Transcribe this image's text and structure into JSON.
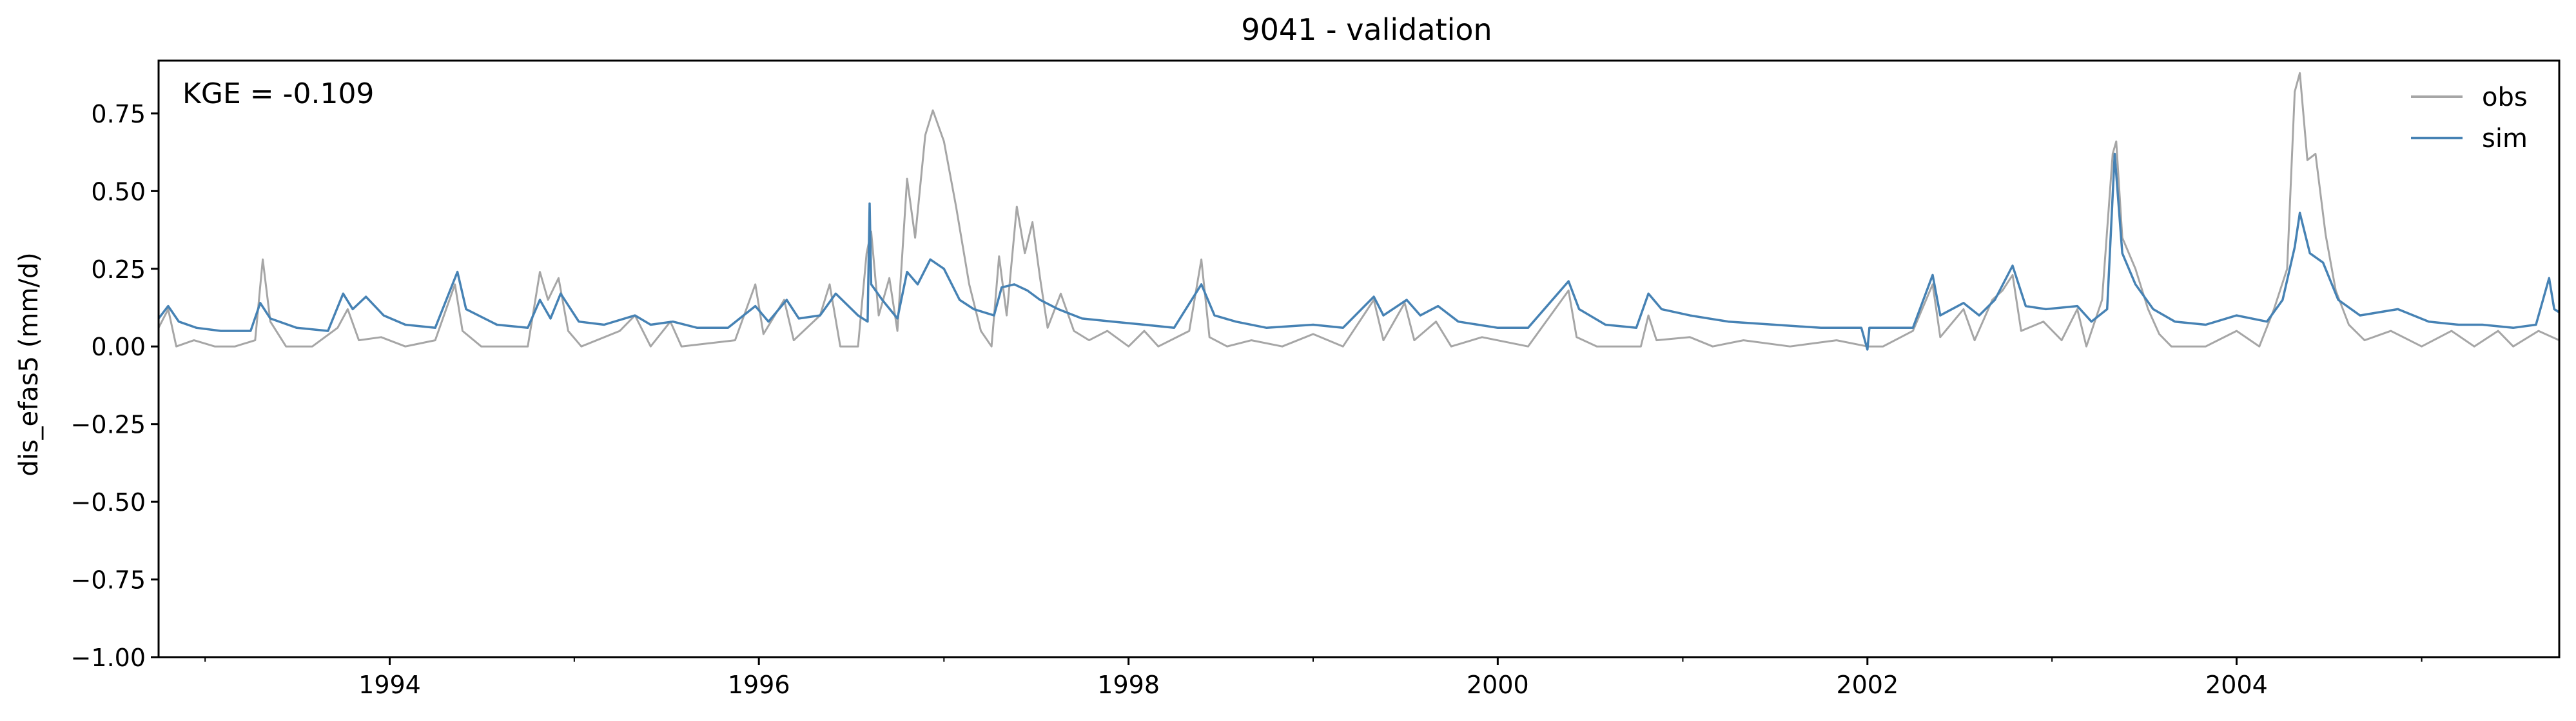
{
  "chart_data": {
    "type": "line",
    "title": "9041 - validation",
    "xlabel": "",
    "ylabel": "dis_efas5 (mm/d)",
    "annotation": "KGE = -0.109",
    "xlim": [
      "1992-10-01",
      "2005-09-30"
    ],
    "ylim": [
      -1.0,
      0.92
    ],
    "x_major_ticks": [
      "1994-01-01",
      "1996-01-01",
      "1998-01-01",
      "2000-01-01",
      "2002-01-01",
      "2004-01-01"
    ],
    "x_tick_labels": [
      "1994",
      "1996",
      "1998",
      "2000",
      "2002",
      "2004"
    ],
    "y_ticks": [
      -1.0,
      -0.75,
      -0.5,
      -0.25,
      0.0,
      0.25,
      0.5,
      0.75
    ],
    "y_tick_labels": [
      "−1.00",
      "−0.75",
      "−0.50",
      "−0.25",
      "0.00",
      "0.25",
      "0.50",
      "0.75"
    ],
    "grid": false,
    "legend_position": "top-right",
    "series": [
      {
        "name": "obs",
        "color": "#a6a6a6",
        "points": [
          [
            "1992-10-01",
            0.06
          ],
          [
            "1992-10-20",
            0.12
          ],
          [
            "1992-11-05",
            0.0
          ],
          [
            "1992-12-10",
            0.02
          ],
          [
            "1993-01-20",
            0.0
          ],
          [
            "1993-03-01",
            0.0
          ],
          [
            "1993-04-10",
            0.02
          ],
          [
            "1993-04-25",
            0.28
          ],
          [
            "1993-05-10",
            0.08
          ],
          [
            "1993-06-10",
            0.0
          ],
          [
            "1993-08-01",
            0.0
          ],
          [
            "1993-09-20",
            0.06
          ],
          [
            "1993-10-10",
            0.12
          ],
          [
            "1993-11-01",
            0.02
          ],
          [
            "1993-12-15",
            0.03
          ],
          [
            "1994-02-01",
            0.0
          ],
          [
            "1994-04-01",
            0.02
          ],
          [
            "1994-05-10",
            0.2
          ],
          [
            "1994-05-25",
            0.05
          ],
          [
            "1994-07-01",
            0.0
          ],
          [
            "1994-10-01",
            0.0
          ],
          [
            "1994-10-25",
            0.24
          ],
          [
            "1994-11-10",
            0.15
          ],
          [
            "1994-12-01",
            0.22
          ],
          [
            "1994-12-20",
            0.05
          ],
          [
            "1995-01-15",
            0.0
          ],
          [
            "1995-04-01",
            0.05
          ],
          [
            "1995-05-01",
            0.1
          ],
          [
            "1995-06-01",
            0.0
          ],
          [
            "1995-07-10",
            0.08
          ],
          [
            "1995-08-01",
            0.0
          ],
          [
            "1995-11-15",
            0.02
          ],
          [
            "1995-12-25",
            0.2
          ],
          [
            "1996-01-10",
            0.04
          ],
          [
            "1996-02-20",
            0.15
          ],
          [
            "1996-03-10",
            0.02
          ],
          [
            "1996-05-01",
            0.1
          ],
          [
            "1996-05-20",
            0.2
          ],
          [
            "1996-06-10",
            0.0
          ],
          [
            "1996-07-15",
            0.0
          ],
          [
            "1996-08-01",
            0.3
          ],
          [
            "1996-08-10",
            0.37
          ],
          [
            "1996-08-25",
            0.1
          ],
          [
            "1996-09-15",
            0.22
          ],
          [
            "1996-10-01",
            0.05
          ],
          [
            "1996-10-20",
            0.54
          ],
          [
            "1996-11-05",
            0.35
          ],
          [
            "1996-11-25",
            0.68
          ],
          [
            "1996-12-10",
            0.76
          ],
          [
            "1997-01-01",
            0.66
          ],
          [
            "1997-01-25",
            0.45
          ],
          [
            "1997-02-20",
            0.2
          ],
          [
            "1997-03-15",
            0.05
          ],
          [
            "1997-04-05",
            0.0
          ],
          [
            "1997-04-20",
            0.29
          ],
          [
            "1997-05-05",
            0.1
          ],
          [
            "1997-05-25",
            0.45
          ],
          [
            "1997-06-10",
            0.3
          ],
          [
            "1997-06-25",
            0.4
          ],
          [
            "1997-07-10",
            0.22
          ],
          [
            "1997-07-25",
            0.06
          ],
          [
            "1997-08-20",
            0.17
          ],
          [
            "1997-09-15",
            0.05
          ],
          [
            "1997-10-15",
            0.02
          ],
          [
            "1997-11-20",
            0.05
          ],
          [
            "1998-01-01",
            0.0
          ],
          [
            "1998-02-01",
            0.05
          ],
          [
            "1998-03-01",
            0.0
          ],
          [
            "1998-05-01",
            0.05
          ],
          [
            "1998-05-25",
            0.28
          ],
          [
            "1998-06-10",
            0.03
          ],
          [
            "1998-07-15",
            0.0
          ],
          [
            "1998-09-01",
            0.02
          ],
          [
            "1998-11-01",
            0.0
          ],
          [
            "1999-01-01",
            0.04
          ],
          [
            "1999-03-01",
            0.0
          ],
          [
            "1999-05-01",
            0.15
          ],
          [
            "1999-05-20",
            0.02
          ],
          [
            "1999-07-01",
            0.14
          ],
          [
            "1999-07-20",
            0.02
          ],
          [
            "1999-09-01",
            0.08
          ],
          [
            "1999-10-01",
            0.0
          ],
          [
            "1999-12-01",
            0.03
          ],
          [
            "2000-03-01",
            0.0
          ],
          [
            "2000-05-20",
            0.18
          ],
          [
            "2000-06-05",
            0.03
          ],
          [
            "2000-07-15",
            0.0
          ],
          [
            "2000-10-10",
            0.0
          ],
          [
            "2000-10-25",
            0.1
          ],
          [
            "2000-11-10",
            0.02
          ],
          [
            "2001-01-15",
            0.03
          ],
          [
            "2001-03-01",
            0.0
          ],
          [
            "2001-05-01",
            0.02
          ],
          [
            "2001-08-01",
            0.0
          ],
          [
            "2001-11-01",
            0.02
          ],
          [
            "2002-01-01",
            0.0
          ],
          [
            "2002-02-01",
            0.0
          ],
          [
            "2002-04-01",
            0.05
          ],
          [
            "2002-05-10",
            0.2
          ],
          [
            "2002-05-25",
            0.03
          ],
          [
            "2002-07-10",
            0.12
          ],
          [
            "2002-08-01",
            0.02
          ],
          [
            "2002-09-05",
            0.15
          ],
          [
            "2002-09-25",
            0.18
          ],
          [
            "2002-10-15",
            0.23
          ],
          [
            "2002-11-01",
            0.05
          ],
          [
            "2002-12-15",
            0.08
          ],
          [
            "2003-01-20",
            0.02
          ],
          [
            "2003-02-20",
            0.12
          ],
          [
            "2003-03-10",
            0.0
          ],
          [
            "2003-04-10",
            0.15
          ],
          [
            "2003-05-01",
            0.62
          ],
          [
            "2003-05-08",
            0.66
          ],
          [
            "2003-05-20",
            0.35
          ],
          [
            "2003-06-15",
            0.25
          ],
          [
            "2003-07-10",
            0.12
          ],
          [
            "2003-08-01",
            0.04
          ],
          [
            "2003-08-25",
            0.0
          ],
          [
            "2003-11-01",
            0.0
          ],
          [
            "2004-01-01",
            0.05
          ],
          [
            "2004-02-15",
            0.0
          ],
          [
            "2004-03-15",
            0.12
          ],
          [
            "2004-04-10",
            0.25
          ],
          [
            "2004-04-25",
            0.82
          ],
          [
            "2004-05-05",
            0.88
          ],
          [
            "2004-05-20",
            0.6
          ],
          [
            "2004-06-05",
            0.62
          ],
          [
            "2004-06-25",
            0.36
          ],
          [
            "2004-07-15",
            0.18
          ],
          [
            "2004-08-10",
            0.07
          ],
          [
            "2004-09-10",
            0.02
          ],
          [
            "2004-11-01",
            0.05
          ],
          [
            "2005-01-01",
            0.0
          ],
          [
            "2005-03-01",
            0.05
          ],
          [
            "2005-04-15",
            0.0
          ],
          [
            "2005-06-01",
            0.05
          ],
          [
            "2005-07-01",
            0.0
          ],
          [
            "2005-08-20",
            0.05
          ],
          [
            "2005-09-30",
            0.02
          ]
        ]
      },
      {
        "name": "sim",
        "color": "#4682b4",
        "points": [
          [
            "1992-10-01",
            0.09
          ],
          [
            "1992-10-20",
            0.13
          ],
          [
            "1992-11-10",
            0.08
          ],
          [
            "1992-12-15",
            0.06
          ],
          [
            "1993-02-01",
            0.05
          ],
          [
            "1993-04-01",
            0.05
          ],
          [
            "1993-04-20",
            0.14
          ],
          [
            "1993-05-10",
            0.09
          ],
          [
            "1993-07-01",
            0.06
          ],
          [
            "1993-09-01",
            0.05
          ],
          [
            "1993-10-01",
            0.17
          ],
          [
            "1993-10-20",
            0.12
          ],
          [
            "1993-11-15",
            0.16
          ],
          [
            "1993-12-20",
            0.1
          ],
          [
            "1994-02-01",
            0.07
          ],
          [
            "1994-04-01",
            0.06
          ],
          [
            "1994-05-15",
            0.24
          ],
          [
            "1994-06-01",
            0.12
          ],
          [
            "1994-08-01",
            0.07
          ],
          [
            "1994-10-01",
            0.06
          ],
          [
            "1994-10-25",
            0.15
          ],
          [
            "1994-11-15",
            0.09
          ],
          [
            "1994-12-05",
            0.17
          ],
          [
            "1995-01-10",
            0.08
          ],
          [
            "1995-03-01",
            0.07
          ],
          [
            "1995-05-01",
            0.1
          ],
          [
            "1995-06-01",
            0.07
          ],
          [
            "1995-07-15",
            0.08
          ],
          [
            "1995-09-01",
            0.06
          ],
          [
            "1995-11-01",
            0.06
          ],
          [
            "1995-12-25",
            0.13
          ],
          [
            "1996-01-20",
            0.08
          ],
          [
            "1996-02-25",
            0.15
          ],
          [
            "1996-03-20",
            0.09
          ],
          [
            "1996-05-01",
            0.1
          ],
          [
            "1996-06-01",
            0.17
          ],
          [
            "1996-07-15",
            0.1
          ],
          [
            "1996-08-03",
            0.08
          ],
          [
            "1996-08-07",
            0.46
          ],
          [
            "1996-08-10",
            0.2
          ],
          [
            "1996-09-01",
            0.15
          ],
          [
            "1996-10-01",
            0.09
          ],
          [
            "1996-10-20",
            0.24
          ],
          [
            "1996-11-10",
            0.2
          ],
          [
            "1996-12-05",
            0.28
          ],
          [
            "1997-01-01",
            0.25
          ],
          [
            "1997-02-01",
            0.15
          ],
          [
            "1997-03-01",
            0.12
          ],
          [
            "1997-04-10",
            0.1
          ],
          [
            "1997-04-25",
            0.19
          ],
          [
            "1997-05-20",
            0.2
          ],
          [
            "1997-06-15",
            0.18
          ],
          [
            "1997-07-10",
            0.15
          ],
          [
            "1997-08-15",
            0.12
          ],
          [
            "1997-10-01",
            0.09
          ],
          [
            "1997-12-01",
            0.08
          ],
          [
            "1998-02-01",
            0.07
          ],
          [
            "1998-04-01",
            0.06
          ],
          [
            "1998-05-25",
            0.2
          ],
          [
            "1998-06-20",
            0.1
          ],
          [
            "1998-08-01",
            0.08
          ],
          [
            "1998-10-01",
            0.06
          ],
          [
            "1999-01-01",
            0.07
          ],
          [
            "1999-03-01",
            0.06
          ],
          [
            "1999-05-01",
            0.16
          ],
          [
            "1999-05-20",
            0.1
          ],
          [
            "1999-07-05",
            0.15
          ],
          [
            "1999-08-01",
            0.1
          ],
          [
            "1999-09-05",
            0.13
          ],
          [
            "1999-10-15",
            0.08
          ],
          [
            "2000-01-01",
            0.06
          ],
          [
            "2000-03-01",
            0.06
          ],
          [
            "2000-05-20",
            0.21
          ],
          [
            "2000-06-10",
            0.12
          ],
          [
            "2000-08-01",
            0.07
          ],
          [
            "2000-10-01",
            0.06
          ],
          [
            "2000-10-25",
            0.17
          ],
          [
            "2000-11-20",
            0.12
          ],
          [
            "2001-01-15",
            0.1
          ],
          [
            "2001-04-01",
            0.08
          ],
          [
            "2001-07-01",
            0.07
          ],
          [
            "2001-10-01",
            0.06
          ],
          [
            "2001-12-20",
            0.06
          ],
          [
            "2002-01-01",
            -0.01
          ],
          [
            "2002-01-05",
            0.06
          ],
          [
            "2002-04-01",
            0.06
          ],
          [
            "2002-05-10",
            0.23
          ],
          [
            "2002-05-25",
            0.1
          ],
          [
            "2002-07-10",
            0.14
          ],
          [
            "2002-08-10",
            0.1
          ],
          [
            "2002-09-10",
            0.15
          ],
          [
            "2002-10-15",
            0.26
          ],
          [
            "2002-11-10",
            0.13
          ],
          [
            "2002-12-20",
            0.12
          ],
          [
            "2003-02-20",
            0.13
          ],
          [
            "2003-03-20",
            0.08
          ],
          [
            "2003-04-20",
            0.12
          ],
          [
            "2003-05-05",
            0.62
          ],
          [
            "2003-05-20",
            0.3
          ],
          [
            "2003-06-15",
            0.2
          ],
          [
            "2003-07-20",
            0.12
          ],
          [
            "2003-09-01",
            0.08
          ],
          [
            "2003-11-01",
            0.07
          ],
          [
            "2004-01-01",
            0.1
          ],
          [
            "2004-03-01",
            0.08
          ],
          [
            "2004-04-01",
            0.15
          ],
          [
            "2004-04-25",
            0.32
          ],
          [
            "2004-05-05",
            0.43
          ],
          [
            "2004-05-25",
            0.3
          ],
          [
            "2004-06-20",
            0.27
          ],
          [
            "2004-07-20",
            0.15
          ],
          [
            "2004-09-01",
            0.1
          ],
          [
            "2004-11-15",
            0.12
          ],
          [
            "2005-01-15",
            0.08
          ],
          [
            "2005-03-15",
            0.07
          ],
          [
            "2005-05-01",
            0.07
          ],
          [
            "2005-07-01",
            0.06
          ],
          [
            "2005-08-15",
            0.07
          ],
          [
            "2005-09-10",
            0.22
          ],
          [
            "2005-09-20",
            0.12
          ],
          [
            "2005-09-30",
            0.11
          ]
        ]
      }
    ]
  }
}
